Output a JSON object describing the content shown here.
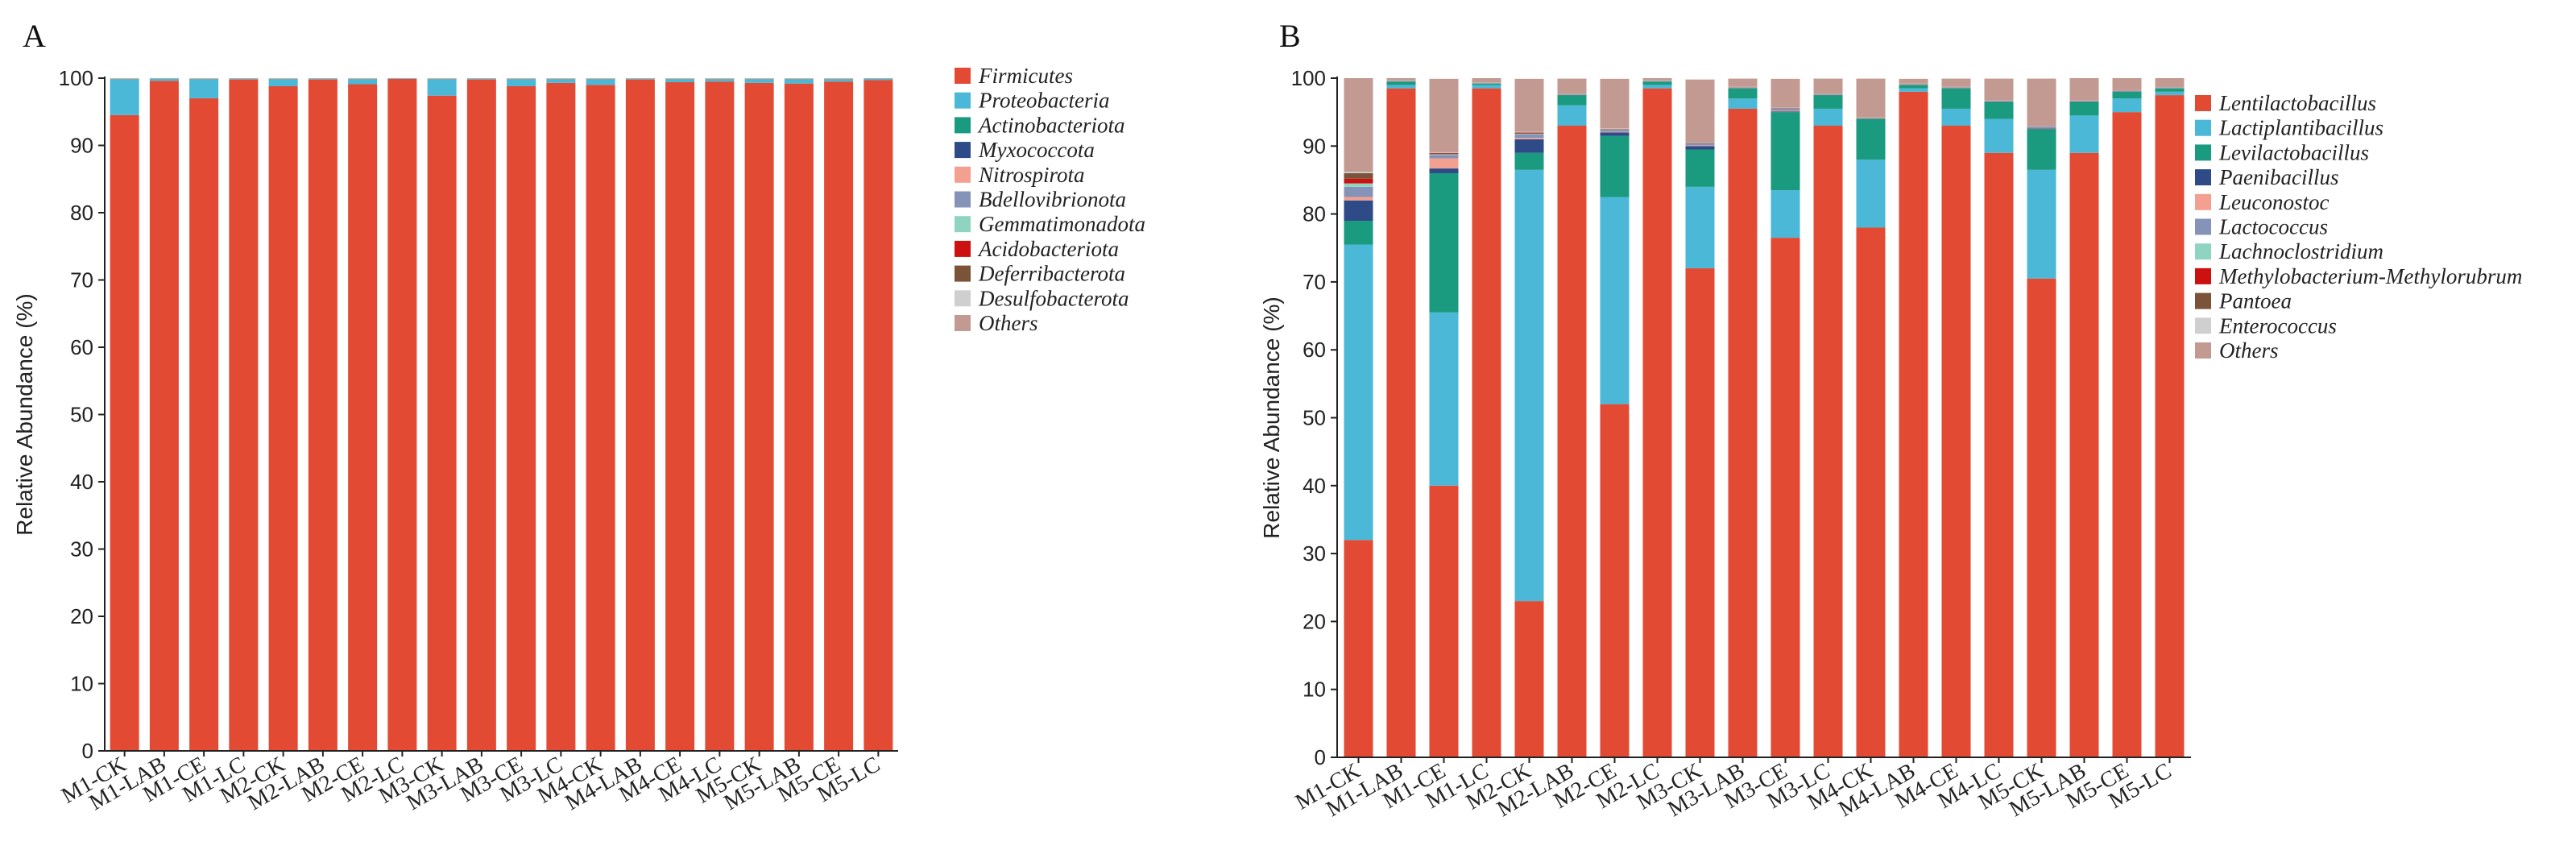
{
  "chart_data": [
    {
      "type": "bar",
      "stacked": true,
      "title": "A",
      "ylabel": "Relative Abundance (%)",
      "xlabel": "",
      "ylim": [
        0,
        100
      ],
      "yticks": [
        0,
        10,
        20,
        30,
        40,
        50,
        60,
        70,
        80,
        90,
        100
      ],
      "categories": [
        "M1-CK",
        "M1-LAB",
        "M1-CE",
        "M1-LC",
        "M2-CK",
        "M2-LAB",
        "M2-CE",
        "M2-LC",
        "M3-CK",
        "M3-LAB",
        "M3-CE",
        "M3-LC",
        "M4-CK",
        "M4-LAB",
        "M4-CE",
        "M4-LC",
        "M5-CK",
        "M5-LAB",
        "M5-CE",
        "M5-LC"
      ],
      "legend_position": "right",
      "series": [
        {
          "name": "Firmicutes",
          "color": "#e34a33",
          "values": [
            94.5,
            99.6,
            97.0,
            99.8,
            98.8,
            99.8,
            99.1,
            99.9,
            97.4,
            99.8,
            98.8,
            99.3,
            99.0,
            99.8,
            99.4,
            99.5,
            99.3,
            99.2,
            99.5,
            99.7
          ]
        },
        {
          "name": "Proteobacteria",
          "color": "#4ab8d6",
          "values": [
            5.3,
            0.3,
            2.8,
            0.1,
            1.0,
            0.1,
            0.7,
            0.05,
            2.4,
            0.1,
            1.0,
            0.5,
            0.8,
            0.1,
            0.4,
            0.3,
            0.5,
            0.6,
            0.3,
            0.2
          ]
        },
        {
          "name": "Actinobacteriota",
          "color": "#1a9a7e",
          "values": [
            0.05,
            0.02,
            0.05,
            0.02,
            0.05,
            0.02,
            0.05,
            0.02,
            0.05,
            0.02,
            0.05,
            0.05,
            0.05,
            0.02,
            0.05,
            0.05,
            0.05,
            0.05,
            0.05,
            0.02
          ]
        },
        {
          "name": "Myxococcota",
          "color": "#2e4a87",
          "values": [
            0.02,
            0.01,
            0.02,
            0.01,
            0.02,
            0.01,
            0.02,
            0.01,
            0.02,
            0.01,
            0.02,
            0.02,
            0.02,
            0.01,
            0.02,
            0.02,
            0.02,
            0.02,
            0.02,
            0.01
          ]
        },
        {
          "name": "Nitrospirota",
          "color": "#f3a091",
          "values": [
            0.02,
            0.01,
            0.02,
            0.01,
            0.02,
            0.01,
            0.02,
            0.01,
            0.02,
            0.01,
            0.02,
            0.02,
            0.02,
            0.01,
            0.02,
            0.02,
            0.02,
            0.02,
            0.02,
            0.01
          ]
        },
        {
          "name": "Bdellovibrionota",
          "color": "#8593b8",
          "values": [
            0.02,
            0.01,
            0.02,
            0.01,
            0.02,
            0.01,
            0.02,
            0.01,
            0.02,
            0.01,
            0.02,
            0.02,
            0.02,
            0.01,
            0.02,
            0.02,
            0.02,
            0.02,
            0.02,
            0.01
          ]
        },
        {
          "name": "Gemmatimonadota",
          "color": "#8fd4c0",
          "values": [
            0.02,
            0.01,
            0.02,
            0.01,
            0.02,
            0.01,
            0.02,
            0.01,
            0.02,
            0.01,
            0.02,
            0.02,
            0.02,
            0.01,
            0.02,
            0.02,
            0.02,
            0.02,
            0.02,
            0.01
          ]
        },
        {
          "name": "Acidobacteriota",
          "color": "#cc1111",
          "values": [
            0.01,
            0.01,
            0.01,
            0.01,
            0.01,
            0.01,
            0.01,
            0.01,
            0.01,
            0.01,
            0.01,
            0.01,
            0.01,
            0.01,
            0.01,
            0.01,
            0.01,
            0.01,
            0.01,
            0.01
          ]
        },
        {
          "name": "Deferribacterota",
          "color": "#7a5338",
          "values": [
            0.01,
            0.01,
            0.01,
            0.01,
            0.01,
            0.01,
            0.01,
            0.01,
            0.01,
            0.01,
            0.01,
            0.01,
            0.01,
            0.01,
            0.01,
            0.01,
            0.01,
            0.01,
            0.01,
            0.01
          ]
        },
        {
          "name": "Desulfobacterota",
          "color": "#cfcfcf",
          "values": [
            0.01,
            0.01,
            0.01,
            0.01,
            0.01,
            0.01,
            0.01,
            0.01,
            0.01,
            0.01,
            0.01,
            0.01,
            0.01,
            0.01,
            0.01,
            0.01,
            0.01,
            0.01,
            0.01,
            0.01
          ]
        },
        {
          "name": "Others",
          "color": "#c29a92",
          "values": [
            0.03,
            0.02,
            0.03,
            0.02,
            0.03,
            0.02,
            0.03,
            0.02,
            0.03,
            0.02,
            0.03,
            0.03,
            0.03,
            0.02,
            0.03,
            0.03,
            0.03,
            0.03,
            0.03,
            0.02
          ]
        }
      ]
    },
    {
      "type": "bar",
      "stacked": true,
      "title": "B",
      "ylabel": "Relative Abundance (%)",
      "xlabel": "",
      "ylim": [
        0,
        100
      ],
      "yticks": [
        0,
        10,
        20,
        30,
        40,
        50,
        60,
        70,
        80,
        90,
        100
      ],
      "categories": [
        "M1-CK",
        "M1-LAB",
        "M1-CE",
        "M1-LC",
        "M2-CK",
        "M2-LAB",
        "M2-CE",
        "M2-LC",
        "M3-CK",
        "M3-LAB",
        "M3-CE",
        "M3-LC",
        "M4-CK",
        "M4-LAB",
        "M4-CE",
        "M4-LC",
        "M5-CK",
        "M5-LAB",
        "M5-CE",
        "M5-LC"
      ],
      "legend_position": "right",
      "series": [
        {
          "name": "Lentilactobacillus",
          "color": "#e34a33",
          "values": [
            32,
            98.5,
            40,
            98.5,
            23,
            93,
            52,
            98.5,
            72,
            95.5,
            76.5,
            93,
            78,
            98,
            93,
            89,
            70.5,
            89,
            95,
            97.5
          ]
        },
        {
          "name": "Lactiplantibacillus",
          "color": "#4ab8d6",
          "values": [
            43.5,
            0.5,
            25.5,
            0.5,
            63.5,
            3,
            30.5,
            0.5,
            12,
            1.5,
            7,
            2.5,
            10,
            0.5,
            2.5,
            5,
            16,
            5.5,
            2,
            0.5
          ]
        },
        {
          "name": "Levilactobacillus",
          "color": "#1a9a7e",
          "values": [
            3.5,
            0.5,
            20.5,
            0.2,
            2.5,
            1.5,
            9,
            0.5,
            5.5,
            1.5,
            11.5,
            2,
            6,
            0.5,
            3,
            2.5,
            6,
            2,
            1,
            0.5
          ]
        },
        {
          "name": "Paenibacillus",
          "color": "#2e4a87",
          "values": [
            3,
            0.02,
            0.7,
            0.02,
            2,
            0.05,
            0.5,
            0.02,
            0.5,
            0.05,
            0.1,
            0.05,
            0.05,
            0.02,
            0.05,
            0.05,
            0.1,
            0.05,
            0.05,
            0.02
          ]
        },
        {
          "name": "Leuconostoc",
          "color": "#f3a091",
          "values": [
            0.5,
            0.05,
            1.5,
            0.05,
            0.2,
            0.05,
            0.1,
            0.05,
            0.1,
            0.05,
            0.1,
            0.05,
            0.05,
            0.05,
            0.05,
            0.05,
            0.05,
            0.05,
            0.05,
            0.05
          ]
        },
        {
          "name": "Lactococcus",
          "color": "#8593b8",
          "values": [
            1.5,
            0.05,
            0.5,
            0.05,
            0.5,
            0.05,
            0.3,
            0.05,
            0.3,
            0.05,
            0.3,
            0.05,
            0.05,
            0.05,
            0.05,
            0.05,
            0.2,
            0.05,
            0.05,
            0.05
          ]
        },
        {
          "name": "Lachnoclostridium",
          "color": "#8fd4c0",
          "values": [
            0.5,
            0.02,
            0.1,
            0.02,
            0.1,
            0.02,
            0.05,
            0.02,
            0.05,
            0.02,
            0.05,
            0.02,
            0.02,
            0.02,
            0.02,
            0.02,
            0.02,
            0.02,
            0.02,
            0.02
          ]
        },
        {
          "name": "Methylobacterium-Methylorubrum",
          "color": "#cc1111",
          "values": [
            0.7,
            0.02,
            0.1,
            0.02,
            0.1,
            0.02,
            0.05,
            0.02,
            0.05,
            0.02,
            0.05,
            0.02,
            0.02,
            0.02,
            0.02,
            0.02,
            0.02,
            0.02,
            0.02,
            0.02
          ]
        },
        {
          "name": "Pantoea",
          "color": "#7a5338",
          "values": [
            0.8,
            0.02,
            0.1,
            0.02,
            0.1,
            0.02,
            0.05,
            0.02,
            0.05,
            0.02,
            0.05,
            0.02,
            0.02,
            0.02,
            0.02,
            0.02,
            0.02,
            0.02,
            0.02,
            0.02
          ]
        },
        {
          "name": "Enterococcus",
          "color": "#cfcfcf",
          "values": [
            0.2,
            0.02,
            0.1,
            0.02,
            0.1,
            0.02,
            0.05,
            0.02,
            0.05,
            0.02,
            0.05,
            0.02,
            0.02,
            0.02,
            0.02,
            0.02,
            0.02,
            0.02,
            0.02,
            0.02
          ]
        },
        {
          "name": "Others",
          "color": "#c29a92",
          "values": [
            13.8,
            0.5,
            10.8,
            0.6,
            7.8,
            2.2,
            7.3,
            0.3,
            9.2,
            1.2,
            4.2,
            2.2,
            5.7,
            0.7,
            1.2,
            3.2,
            7.0,
            3.3,
            1.8,
            1.3
          ]
        }
      ]
    }
  ]
}
